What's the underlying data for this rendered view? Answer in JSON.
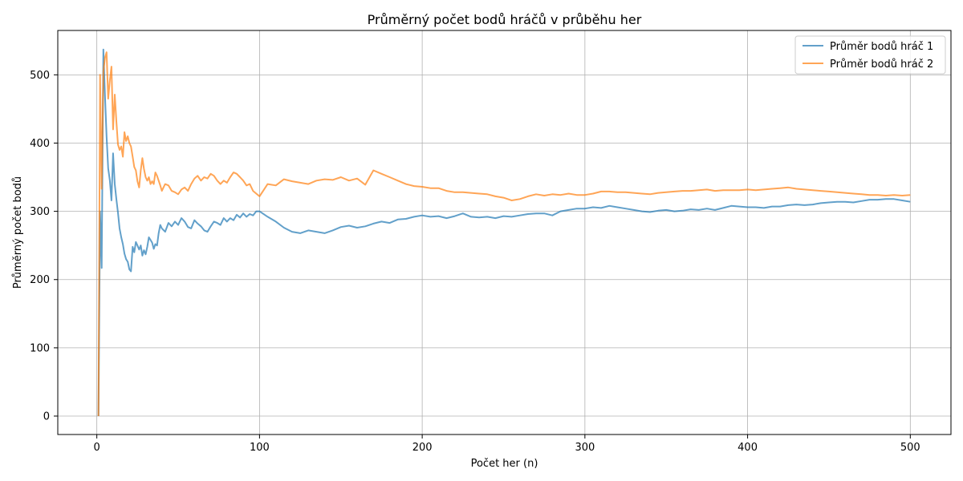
{
  "chart_data": {
    "type": "line",
    "title": "Průměrný počet bodů hráčů v průběhu her",
    "xlabel": "Počet her (n)",
    "ylabel": "Průměrný počet bodů",
    "xlim": [
      -24,
      525
    ],
    "ylim": [
      -27,
      565
    ],
    "xticks": [
      0,
      100,
      200,
      300,
      400,
      500
    ],
    "yticks": [
      0,
      100,
      200,
      300,
      400,
      500
    ],
    "grid": true,
    "legend": "top-right",
    "series": [
      {
        "name": "Průměr bodů hráč 1",
        "color": "#1f77b4",
        "x": [
          1,
          2,
          3,
          4,
          5,
          6,
          7,
          8,
          9,
          10,
          11,
          12,
          13,
          14,
          15,
          16,
          17,
          18,
          19,
          20,
          21,
          22,
          23,
          24,
          25,
          26,
          27,
          28,
          29,
          30,
          31,
          32,
          33,
          34,
          35,
          36,
          37,
          38,
          39,
          40,
          42,
          44,
          46,
          48,
          50,
          52,
          54,
          56,
          58,
          60,
          62,
          64,
          66,
          68,
          70,
          72,
          74,
          76,
          78,
          80,
          82,
          84,
          86,
          88,
          90,
          92,
          94,
          96,
          98,
          100,
          105,
          110,
          115,
          120,
          125,
          130,
          135,
          140,
          145,
          150,
          155,
          160,
          165,
          170,
          175,
          180,
          185,
          190,
          195,
          200,
          205,
          210,
          215,
          220,
          225,
          230,
          235,
          240,
          245,
          250,
          255,
          260,
          265,
          270,
          275,
          280,
          285,
          290,
          295,
          300,
          305,
          310,
          315,
          320,
          325,
          330,
          335,
          340,
          345,
          350,
          355,
          360,
          365,
          370,
          375,
          380,
          385,
          390,
          395,
          400,
          405,
          410,
          415,
          420,
          425,
          430,
          435,
          440,
          445,
          450,
          455,
          460,
          465,
          470,
          475,
          480,
          485,
          490,
          495,
          500
        ],
        "y": [
          0,
          300,
          217,
          537,
          470,
          410,
          363,
          345,
          316,
          385,
          340,
          318,
          298,
          275,
          262,
          252,
          238,
          230,
          226,
          215,
          212,
          248,
          240,
          255,
          250,
          244,
          250,
          235,
          243,
          237,
          248,
          262,
          258,
          254,
          245,
          252,
          250,
          268,
          280,
          275,
          270,
          283,
          278,
          285,
          280,
          290,
          285,
          277,
          275,
          287,
          282,
          278,
          272,
          270,
          278,
          285,
          283,
          280,
          290,
          285,
          290,
          287,
          295,
          291,
          297,
          292,
          296,
          294,
          300,
          300,
          292,
          285,
          276,
          270,
          268,
          272,
          270,
          268,
          272,
          277,
          279,
          276,
          278,
          282,
          285,
          283,
          288,
          289,
          292,
          294,
          292,
          293,
          290,
          293,
          297,
          292,
          291,
          292,
          290,
          293,
          292,
          294,
          296,
          297,
          297,
          294,
          300,
          302,
          304,
          304,
          306,
          305,
          308,
          306,
          304,
          302,
          300,
          299,
          301,
          302,
          300,
          301,
          303,
          302,
          304,
          302,
          305,
          308,
          307,
          306,
          306,
          305,
          307,
          307,
          309,
          310,
          309,
          310,
          312,
          313,
          314,
          314,
          313,
          315,
          317,
          317,
          318,
          318,
          316,
          314
        ]
      },
      {
        "name": "Průměr bodů hráč 2",
        "color": "#ff7f0e",
        "x": [
          1,
          2,
          3,
          4,
          5,
          6,
          7,
          8,
          9,
          10,
          11,
          12,
          13,
          14,
          15,
          16,
          17,
          18,
          19,
          20,
          21,
          22,
          23,
          24,
          25,
          26,
          27,
          28,
          29,
          30,
          31,
          32,
          33,
          34,
          35,
          36,
          37,
          38,
          39,
          40,
          42,
          44,
          46,
          48,
          50,
          52,
          54,
          56,
          58,
          60,
          62,
          64,
          66,
          68,
          70,
          72,
          74,
          76,
          78,
          80,
          82,
          84,
          86,
          88,
          90,
          92,
          94,
          96,
          98,
          100,
          105,
          110,
          115,
          120,
          125,
          130,
          135,
          140,
          145,
          150,
          155,
          160,
          165,
          170,
          175,
          180,
          185,
          190,
          195,
          200,
          205,
          210,
          215,
          220,
          225,
          230,
          235,
          240,
          245,
          250,
          255,
          260,
          265,
          270,
          275,
          280,
          285,
          290,
          295,
          300,
          305,
          310,
          315,
          320,
          325,
          330,
          335,
          340,
          345,
          350,
          355,
          360,
          365,
          370,
          375,
          380,
          385,
          390,
          395,
          400,
          405,
          410,
          415,
          420,
          425,
          430,
          435,
          440,
          445,
          450,
          455,
          460,
          465,
          470,
          475,
          480,
          485,
          490,
          495,
          500
        ],
        "y": [
          0,
          500,
          333,
          505,
          525,
          533,
          465,
          492,
          512,
          420,
          471,
          432,
          398,
          390,
          395,
          380,
          416,
          403,
          410,
          400,
          395,
          380,
          365,
          360,
          344,
          335,
          360,
          378,
          362,
          350,
          345,
          350,
          340,
          344,
          340,
          357,
          352,
          345,
          338,
          330,
          340,
          338,
          330,
          328,
          325,
          332,
          335,
          330,
          340,
          348,
          352,
          345,
          350,
          348,
          355,
          352,
          345,
          340,
          345,
          342,
          350,
          357,
          355,
          350,
          345,
          338,
          340,
          330,
          326,
          322,
          340,
          338,
          347,
          344,
          342,
          340,
          345,
          347,
          346,
          350,
          345,
          348,
          339,
          360,
          355,
          350,
          345,
          340,
          337,
          336,
          334,
          334,
          330,
          328,
          328,
          327,
          326,
          325,
          322,
          320,
          316,
          318,
          322,
          325,
          323,
          325,
          324,
          326,
          324,
          324,
          326,
          329,
          329,
          328,
          328,
          327,
          326,
          325,
          327,
          328,
          329,
          330,
          330,
          331,
          332,
          330,
          331,
          331,
          331,
          332,
          331,
          332,
          333,
          334,
          335,
          333,
          332,
          331,
          330,
          329,
          328,
          327,
          326,
          325,
          324,
          324,
          323,
          324,
          323,
          324
        ]
      }
    ]
  }
}
